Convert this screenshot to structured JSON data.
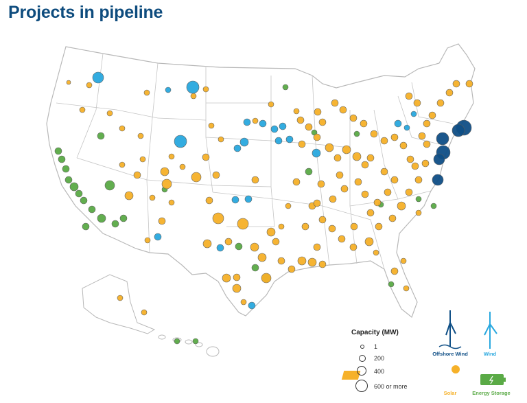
{
  "title": "Projects in pipeline",
  "legend": {
    "capacity_title": "Capacity (MW)",
    "capacity_items": [
      "1",
      "200",
      "400",
      "600 or more"
    ],
    "types": [
      {
        "label": "Offshore Wind",
        "color": "#0f4f86",
        "icon": "offshore-wind-turbine-icon"
      },
      {
        "label": "Wind",
        "color": "#29a8df",
        "icon": "wind-turbine-icon"
      },
      {
        "label": "Solar",
        "color": "#f6b129",
        "icon": "solar-panel-icon"
      },
      {
        "label": "Energy Storage",
        "color": "#5aaa46",
        "icon": "battery-icon"
      }
    ]
  },
  "colors": {
    "offshore_wind": "#0f4f86",
    "wind": "#29a8df",
    "solar": "#f6b129",
    "storage": "#5aaa46",
    "land": "#ffffff",
    "border": "#b8b8b8"
  }
}
